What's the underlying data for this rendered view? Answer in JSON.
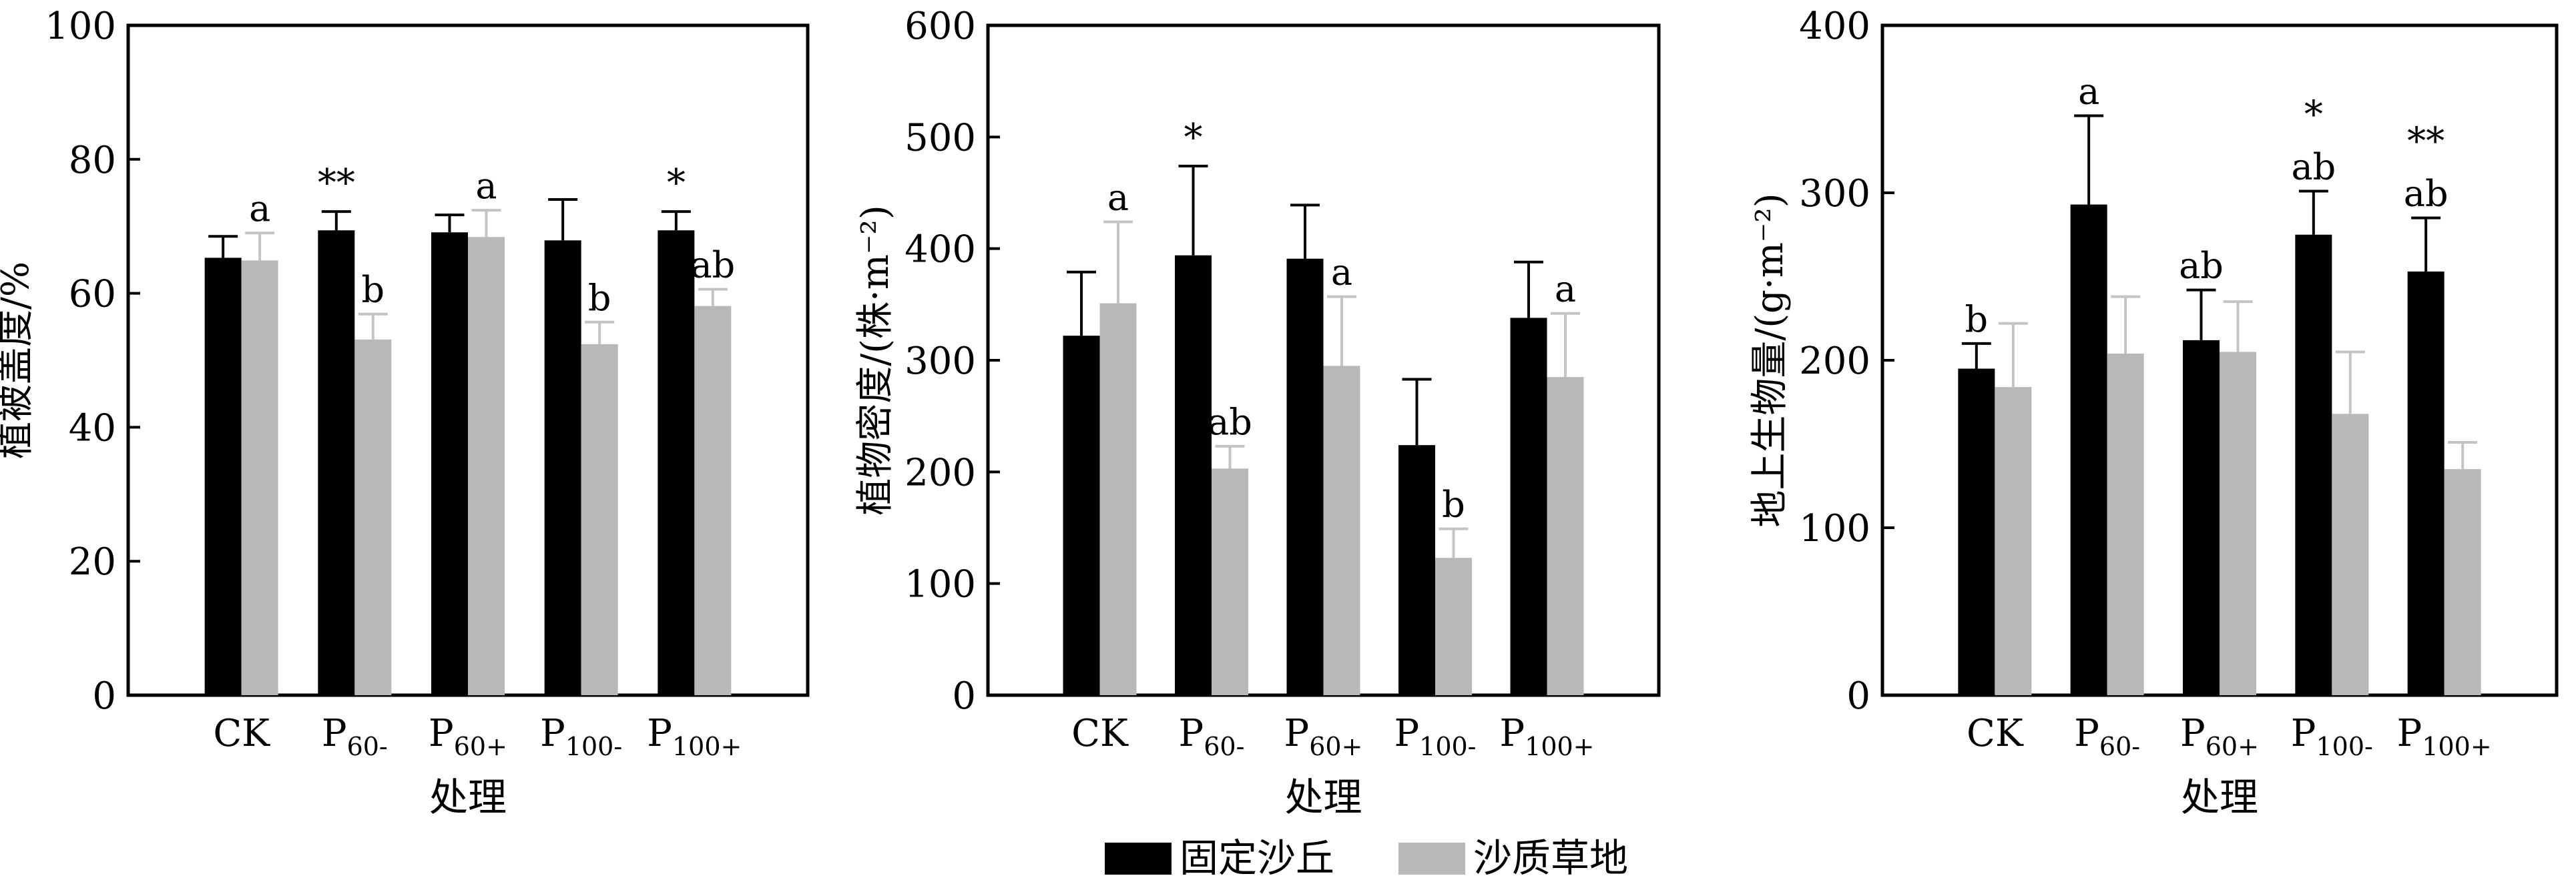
{
  "chart_data": [
    {
      "type": "bar",
      "ylabel": "植被盖度/%",
      "xlabel": "处理",
      "ylim": [
        0,
        100
      ],
      "yticks": [
        0,
        20,
        40,
        60,
        80,
        100
      ],
      "categories": [
        {
          "main": "CK",
          "sub": ""
        },
        {
          "main": "P",
          "sub": "60-"
        },
        {
          "main": "P",
          "sub": "60+"
        },
        {
          "main": "P",
          "sub": "100-"
        },
        {
          "main": "P",
          "sub": "100+"
        }
      ],
      "series": [
        {
          "name": "固定沙丘",
          "values": [
            65.3,
            69.4,
            69.1,
            67.9,
            69.4
          ],
          "errors": [
            3.2,
            2.8,
            2.6,
            6.1,
            2.8
          ],
          "labels": [
            "",
            "",
            "",
            "",
            ""
          ]
        },
        {
          "name": "沙质草地",
          "values": [
            64.9,
            53.1,
            68.4,
            52.4,
            58.1
          ],
          "errors": [
            4.1,
            3.8,
            4.0,
            3.3,
            2.5
          ],
          "labels": [
            "a",
            "b",
            "a",
            "b",
            "ab"
          ]
        }
      ],
      "significance": [
        "",
        "**",
        "",
        "",
        "*"
      ]
    },
    {
      "type": "bar",
      "ylabel": "植物密度/(株·m⁻²)",
      "xlabel": "处理",
      "ylim": [
        0,
        600
      ],
      "yticks": [
        0,
        100,
        200,
        300,
        400,
        500,
        600
      ],
      "categories": [
        {
          "main": "CK",
          "sub": ""
        },
        {
          "main": "P",
          "sub": "60-"
        },
        {
          "main": "P",
          "sub": "60+"
        },
        {
          "main": "P",
          "sub": "100-"
        },
        {
          "main": "P",
          "sub": "100+"
        }
      ],
      "series": [
        {
          "name": "固定沙丘",
          "values": [
            322,
            394,
            391,
            224,
            338
          ],
          "errors": [
            57,
            80,
            48,
            59,
            50
          ],
          "labels": [
            "",
            "",
            "",
            "",
            ""
          ]
        },
        {
          "name": "沙质草地",
          "values": [
            351,
            203,
            295,
            123,
            285
          ],
          "errors": [
            73,
            20,
            62,
            26,
            57
          ],
          "labels": [
            "a",
            "ab",
            "a",
            "b",
            "a"
          ]
        }
      ],
      "significance": [
        "",
        "*",
        "",
        "",
        ""
      ]
    },
    {
      "type": "bar",
      "ylabel": "地上生物量/(g·m⁻²)",
      "xlabel": "处理",
      "ylim": [
        0,
        400
      ],
      "yticks": [
        0,
        100,
        200,
        300,
        400
      ],
      "categories": [
        {
          "main": "CK",
          "sub": ""
        },
        {
          "main": "P",
          "sub": "60-"
        },
        {
          "main": "P",
          "sub": "60+"
        },
        {
          "main": "P",
          "sub": "100-"
        },
        {
          "main": "P",
          "sub": "100+"
        }
      ],
      "series": [
        {
          "name": "固定沙丘",
          "values": [
            195,
            293,
            212,
            275,
            253
          ],
          "errors": [
            15,
            53,
            30,
            26,
            32
          ],
          "labels": [
            "b",
            "a",
            "ab",
            "ab",
            "ab"
          ]
        },
        {
          "name": "沙质草地",
          "values": [
            184,
            204,
            205,
            168,
            135
          ],
          "errors": [
            38,
            34,
            30,
            37,
            16
          ],
          "labels": [
            "",
            "",
            "",
            "",
            ""
          ]
        }
      ],
      "significance": [
        "",
        "",
        "",
        "*",
        "**"
      ]
    }
  ],
  "legend": {
    "items": [
      {
        "label": "固定沙丘",
        "color": "#000000"
      },
      {
        "label": "沙质草地",
        "color": "#b8b8b8"
      }
    ]
  },
  "colors": {
    "series_1": "#000000",
    "series_2": "#b8b8b8",
    "error_bar_2": "#c4c4c4"
  }
}
